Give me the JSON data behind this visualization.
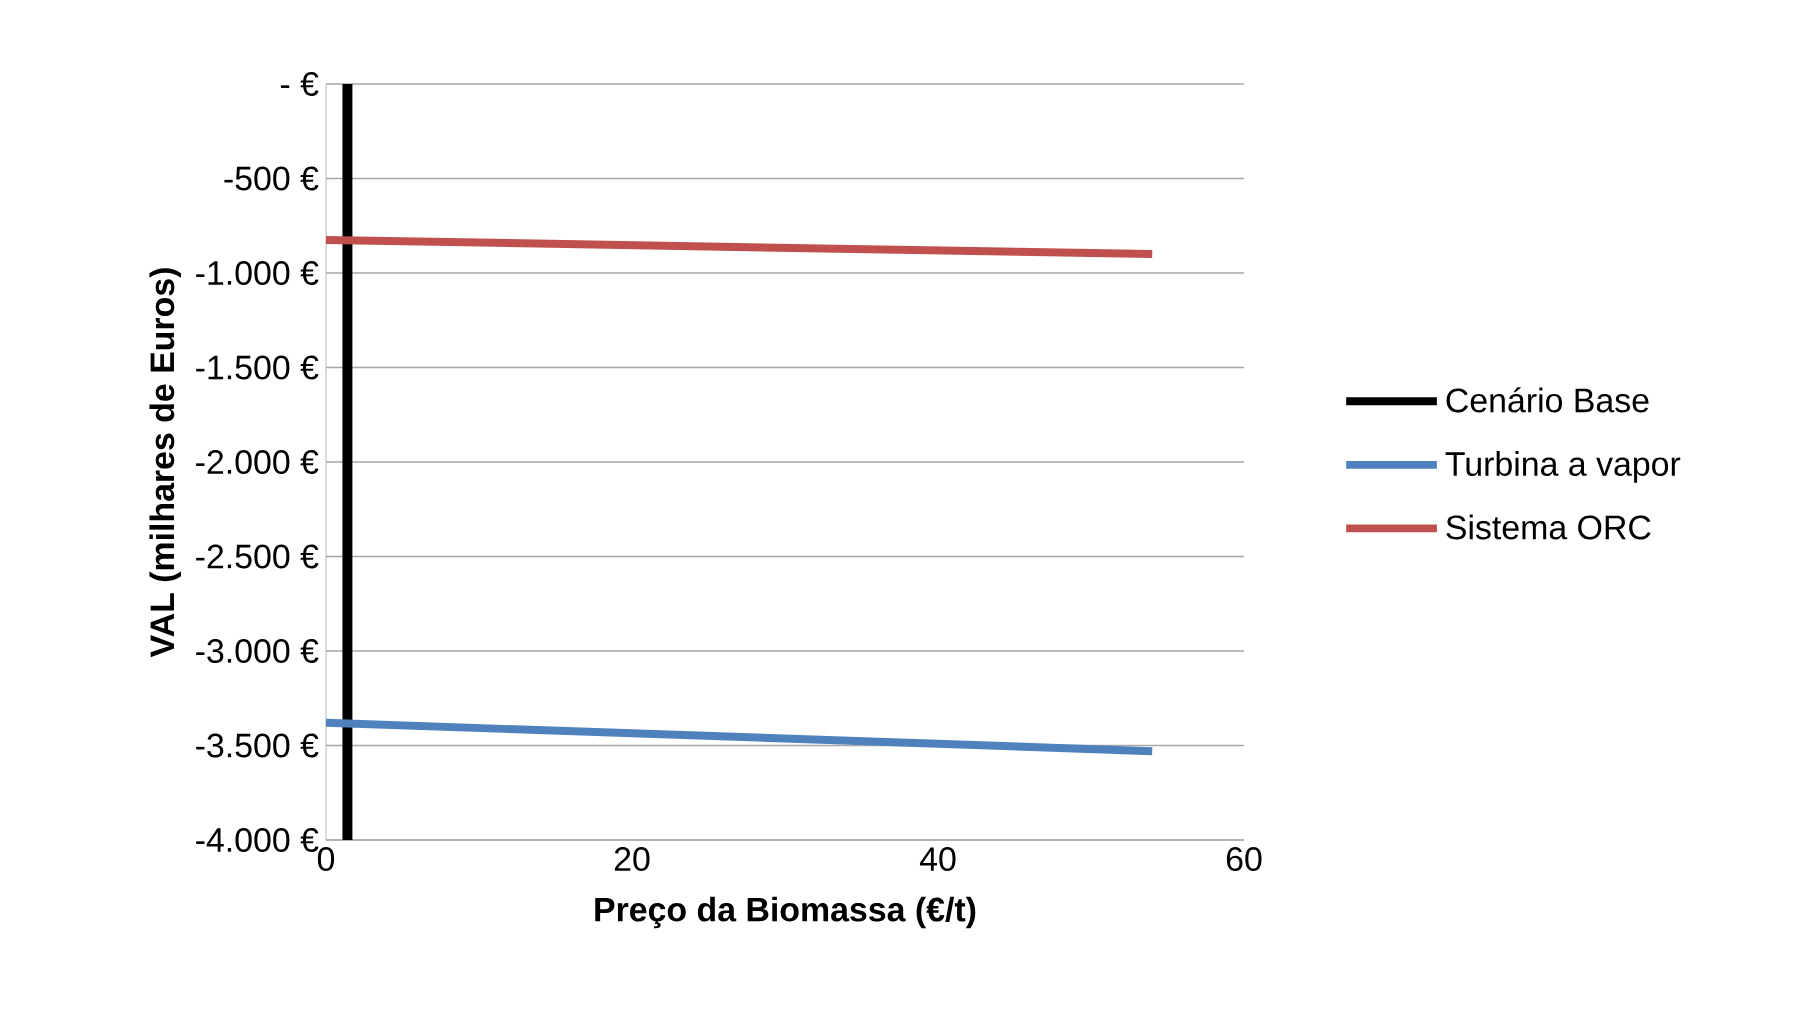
{
  "chart_data": {
    "type": "line",
    "xlabel": "Preço da Biomassa (€/t)",
    "ylabel": "VAL (milhares de Euros)",
    "xlim": [
      0,
      60
    ],
    "xticks": [
      0,
      20,
      40,
      60
    ],
    "ylim": [
      -4000,
      0
    ],
    "yticks": [
      {
        "value": 0,
        "label": "-  €"
      },
      {
        "value": -500,
        "label": "-500 €"
      },
      {
        "value": -1000,
        "label": "-1.000 €"
      },
      {
        "value": -1500,
        "label": "-1.500 €"
      },
      {
        "value": -2000,
        "label": "-2.000 €"
      },
      {
        "value": -2500,
        "label": "-2.500 €"
      },
      {
        "value": -3000,
        "label": "-3.000 €"
      },
      {
        "value": -3500,
        "label": "-3.500 €"
      },
      {
        "value": -4000,
        "label": "-4.000 €"
      }
    ],
    "grid": "y",
    "legend": "right",
    "line_style": "solid",
    "series": [
      {
        "name": "Cenário Base",
        "color": "#000000",
        "x": [
          1.4,
          1.4
        ],
        "values": [
          0,
          -4000
        ]
      },
      {
        "name": "Turbina a vapor",
        "color": "#4f81bd",
        "x": [
          0,
          54
        ],
        "values": [
          -3380,
          -3530
        ]
      },
      {
        "name": "Sistema ORC",
        "color": "#c0504d",
        "x": [
          0,
          54
        ],
        "values": [
          -825,
          -900
        ]
      }
    ]
  }
}
